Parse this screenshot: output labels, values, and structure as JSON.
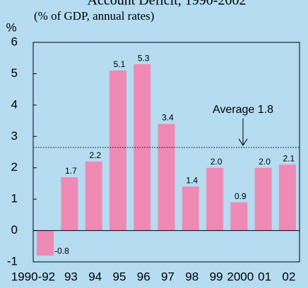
{
  "chart_data": {
    "type": "bar",
    "title": "Account Deficit, 1990-2002",
    "subtitle": "(% of GDP, annual rates)",
    "y_label": "%",
    "categories": [
      "1990-92",
      "93",
      "94",
      "95",
      "96",
      "97",
      "98",
      "99",
      "2000",
      "01",
      "02"
    ],
    "values": [
      -0.8,
      1.7,
      2.2,
      5.1,
      5.3,
      3.4,
      1.4,
      2.0,
      0.9,
      2.0,
      2.1
    ],
    "value_labels": [
      "-0.8",
      "1.7",
      "2.2",
      "5.1",
      "5.3",
      "3.4",
      "1.4",
      "2.0",
      "0.9",
      "2.0",
      "2.1"
    ],
    "color": "#ef8ab4",
    "ylim": [
      -1,
      6
    ],
    "yticks": [
      -1,
      0,
      1,
      2,
      3,
      4,
      5,
      6
    ],
    "annotation": {
      "text": "Average 1.8",
      "y": 2.65
    }
  }
}
